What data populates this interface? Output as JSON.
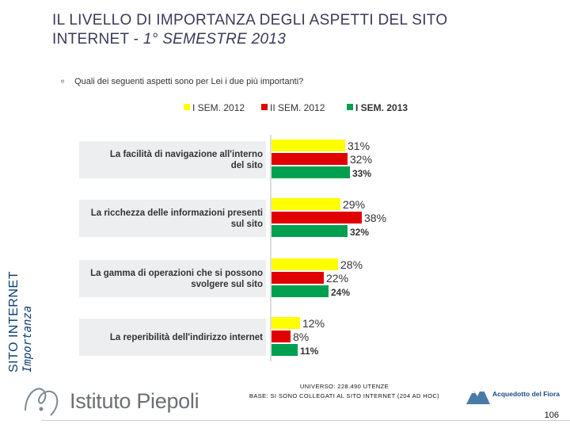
{
  "side_band": {
    "line1": "SITO INTERNET",
    "line2": "Importanza"
  },
  "title": {
    "line1": "IL LIVELLO DI IMPORTANZA DEGLI ASPETTI DEL SITO",
    "line2_prefix": "INTERNET - ",
    "line2_italic": "1° SEMESTRE 2013"
  },
  "question": {
    "icon": "ring-icon",
    "text": "Quali dei seguenti aspetti sono per Lei i due più importanti?"
  },
  "chart_data": {
    "type": "bar",
    "orientation": "horizontal",
    "categories": [
      "La facilità di navigazione all'interno del sito",
      "La ricchezza delle informazioni presenti sul sito",
      "La gamma di operazioni che si possono svolgere sul sito",
      "La reperibilità dell'indirizzo internet"
    ],
    "series": [
      {
        "name": "I SEM. 2012",
        "color": "#ffff00",
        "values": [
          31,
          29,
          28,
          12
        ],
        "labels": [
          "31%",
          "29%",
          "28%",
          "12%"
        ]
      },
      {
        "name": "II SEM. 2012",
        "color": "#e00000",
        "values": [
          32,
          38,
          22,
          8
        ],
        "labels": [
          "32%",
          "38%",
          "22%",
          "8%"
        ]
      },
      {
        "name": "I SEM. 2013",
        "color": "#00a050",
        "values": [
          33,
          32,
          24,
          11
        ],
        "labels": [
          "33%",
          "32%",
          "24%",
          "11%"
        ]
      }
    ],
    "label_bold_series": "I SEM. 2013",
    "value_unit": "%",
    "xlim": [
      0,
      100
    ],
    "legend_position": "top",
    "grid": false
  },
  "footer": {
    "logo_text": "Istituto Piepoli",
    "universe_line1": "UNIVERSO: 228.490 UTENZE",
    "universe_line2": "BASE: SI SONO COLLEGATI AL SITO INTERNET (204 AD HOC)",
    "client_logo_text": "Acquedotto del Fiora",
    "page_number": "106"
  }
}
